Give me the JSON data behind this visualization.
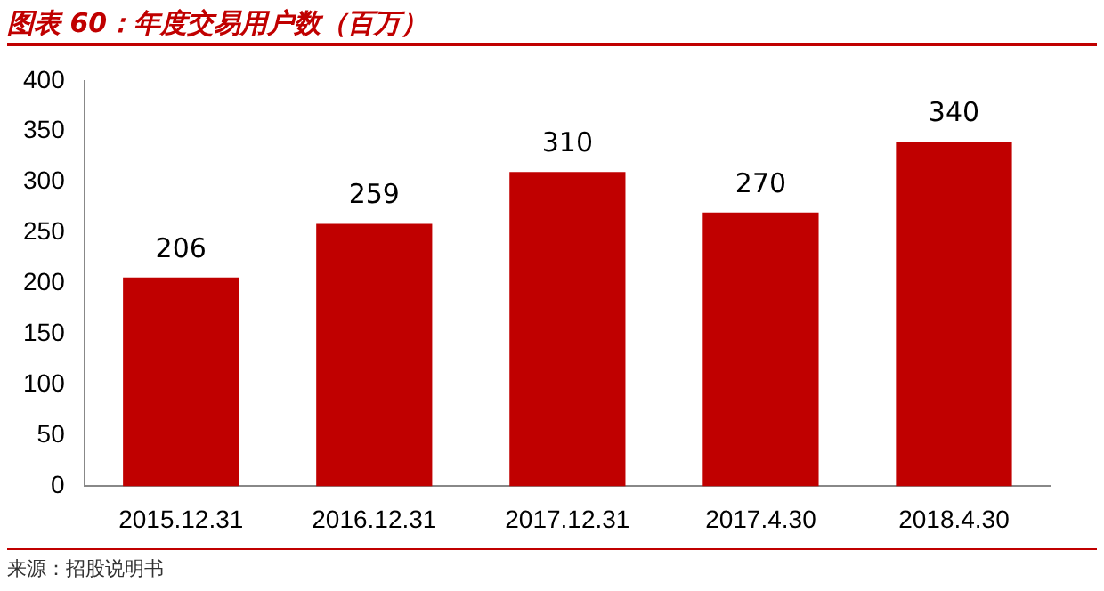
{
  "chart_data": {
    "type": "bar",
    "title": "图表 60：年度交易用户数（百万）",
    "categories": [
      "2015.12.31",
      "2016.12.31",
      "2017.12.31",
      "2017.4.30",
      "2018.4.30"
    ],
    "values": [
      206,
      259,
      310,
      270,
      340
    ],
    "color": "#c00000",
    "ylim": [
      0,
      400
    ],
    "yticks": [
      0,
      50,
      100,
      150,
      200,
      250,
      300,
      350,
      400
    ],
    "grid": false,
    "data_labels": true,
    "annotations": [
      "来源：招股说明书"
    ]
  }
}
